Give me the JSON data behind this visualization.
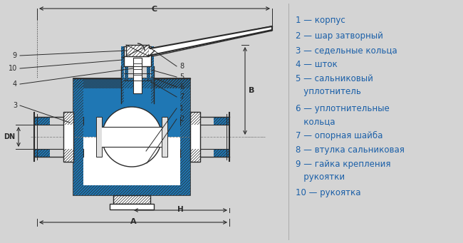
{
  "bg_color": "#d4d4d4",
  "text_color": "#1a5fa8",
  "line_color": "#2a2a2a",
  "dim_color": "#2a2a2a",
  "hatch_color": "#2a2a2a",
  "legend_items": [
    [
      "1",
      "— корпус"
    ],
    [
      "2",
      "— шар затворный"
    ],
    [
      "3",
      "— седельные кольца"
    ],
    [
      "4",
      "— шток"
    ],
    [
      "5",
      "— сальниковый\n   уплотнитель"
    ],
    [
      "6",
      "— уплотнительные\n   кольца"
    ],
    [
      "7",
      "— опорная шайба"
    ],
    [
      "8",
      "— втулка сальниковая"
    ],
    [
      "9",
      "— гайка крепления\n   рукоятки"
    ],
    [
      "10",
      "— рукоятка"
    ]
  ]
}
